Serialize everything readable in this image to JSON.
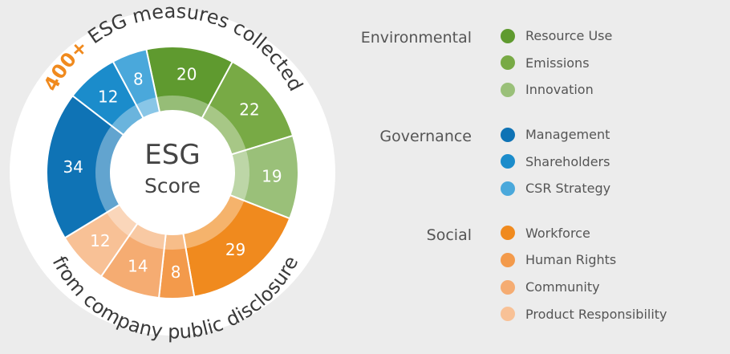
{
  "chart_data": {
    "type": "pie",
    "title": "ESG Score",
    "center_title": "ESG",
    "center_subtitle": "Score",
    "arc_top_highlight": "400+",
    "arc_top_text": "ESG measures collected",
    "arc_bottom_text": "from company public disclosure",
    "segments": [
      {
        "label": "Resource Use",
        "category": "Environmental",
        "value": 20,
        "color": "#5f9a2f"
      },
      {
        "label": "Emissions",
        "category": "Environmental",
        "value": 22,
        "color": "#78aa45"
      },
      {
        "label": "Innovation",
        "category": "Environmental",
        "value": 19,
        "color": "#9ac079"
      },
      {
        "label": "Workforce",
        "category": "Social",
        "value": 29,
        "color": "#f08a1e"
      },
      {
        "label": "Human Rights",
        "category": "Social",
        "value": 8,
        "color": "#f39a4b"
      },
      {
        "label": "Community",
        "category": "Social",
        "value": 14,
        "color": "#f5ac72"
      },
      {
        "label": "Product Responsibility",
        "category": "Social",
        "value": 12,
        "color": "#f8c196"
      },
      {
        "label": "Management",
        "category": "Governance",
        "value": 34,
        "color": "#0f73b5"
      },
      {
        "label": "Shareholders",
        "category": "Governance",
        "value": 12,
        "color": "#1b8ccb"
      },
      {
        "label": "CSR Strategy",
        "category": "Governance",
        "value": 8,
        "color": "#4aa8db"
      }
    ]
  },
  "legend": {
    "groups": [
      {
        "name": "Environmental",
        "items": [
          {
            "label": "Resource Use",
            "color": "#5f9a2f"
          },
          {
            "label": "Emissions",
            "color": "#78aa45"
          },
          {
            "label": "Innovation",
            "color": "#9ac079"
          }
        ]
      },
      {
        "name": "Governance",
        "items": [
          {
            "label": "Management",
            "color": "#0f73b5"
          },
          {
            "label": "Shareholders",
            "color": "#1b8ccb"
          },
          {
            "label": "CSR Strategy",
            "color": "#4aa8db"
          }
        ]
      },
      {
        "name": "Social",
        "items": [
          {
            "label": "Workforce",
            "color": "#f08a1e"
          },
          {
            "label": "Human Rights",
            "color": "#f39a4b"
          },
          {
            "label": "Community",
            "color": "#f5ac72"
          },
          {
            "label": "Product Responsibility",
            "color": "#f8c196"
          }
        ]
      }
    ]
  }
}
